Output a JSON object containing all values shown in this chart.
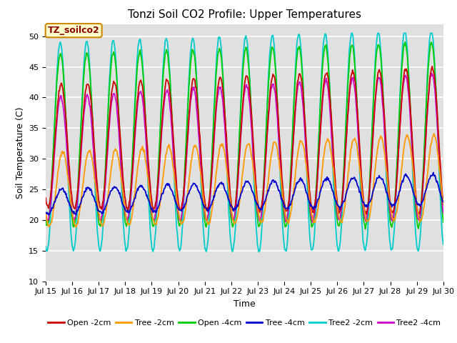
{
  "title": "Tonzi Soil CO2 Profile: Upper Temperatures",
  "xlabel": "Time",
  "ylabel": "Soil Temperature (C)",
  "annotation": "TZ_soilco2",
  "ylim": [
    10,
    52
  ],
  "yticks": [
    10,
    15,
    20,
    25,
    30,
    35,
    40,
    45,
    50
  ],
  "xtick_labels": [
    "Jul 15",
    "Jul 16",
    "Jul 17",
    "Jul 18",
    "Jul 19",
    "Jul 20",
    "Jul 21",
    "Jul 22",
    "Jul 23",
    "Jul 24",
    "Jul 25",
    "Jul 26",
    "Jul 27",
    "Jul 28",
    "Jul 29",
    "Jul 30"
  ],
  "series": [
    {
      "label": "Open -2cm",
      "color": "#cc0000"
    },
    {
      "label": "Tree -2cm",
      "color": "#ff9900"
    },
    {
      "label": "Open -4cm",
      "color": "#00cc00"
    },
    {
      "label": "Tree -4cm",
      "color": "#0000cc"
    },
    {
      "label": "Tree2 -2cm",
      "color": "#00cccc"
    },
    {
      "label": "Tree2 -4cm",
      "color": "#cc00cc"
    }
  ],
  "background_color": "#e0e0e0",
  "grid_color": "#ffffff",
  "title_fontsize": 11,
  "axis_label_fontsize": 9,
  "tick_fontsize": 8,
  "legend_fontsize": 8
}
